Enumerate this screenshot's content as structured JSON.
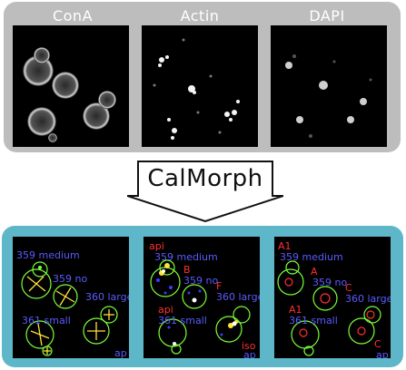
{
  "top_labels": [
    "ConA",
    "Actin",
    "DAPI"
  ],
  "arrow_label": "CalMorph",
  "annotations": {
    "conA": [
      "359 medium",
      "359 no",
      "360 large",
      "361 small",
      "ap"
    ],
    "actin": [
      "api",
      "359 medium",
      "B",
      "359 no",
      "F",
      "360 large",
      "api",
      "361 small",
      "iso",
      "ap"
    ],
    "dapi": [
      "A1",
      "359 medium",
      "A",
      "359 no",
      "C",
      "360 large",
      "A1",
      "361 small",
      "C",
      "ap"
    ]
  },
  "colors": {
    "top_panel": "#bdbdbd",
    "bottom_panel": "#5db7c8",
    "annotation_blue": "#5a5aff",
    "annotation_red": "#ff3030",
    "outline_green": "#7cff3a",
    "axis_yellow": "#ffe23a"
  }
}
